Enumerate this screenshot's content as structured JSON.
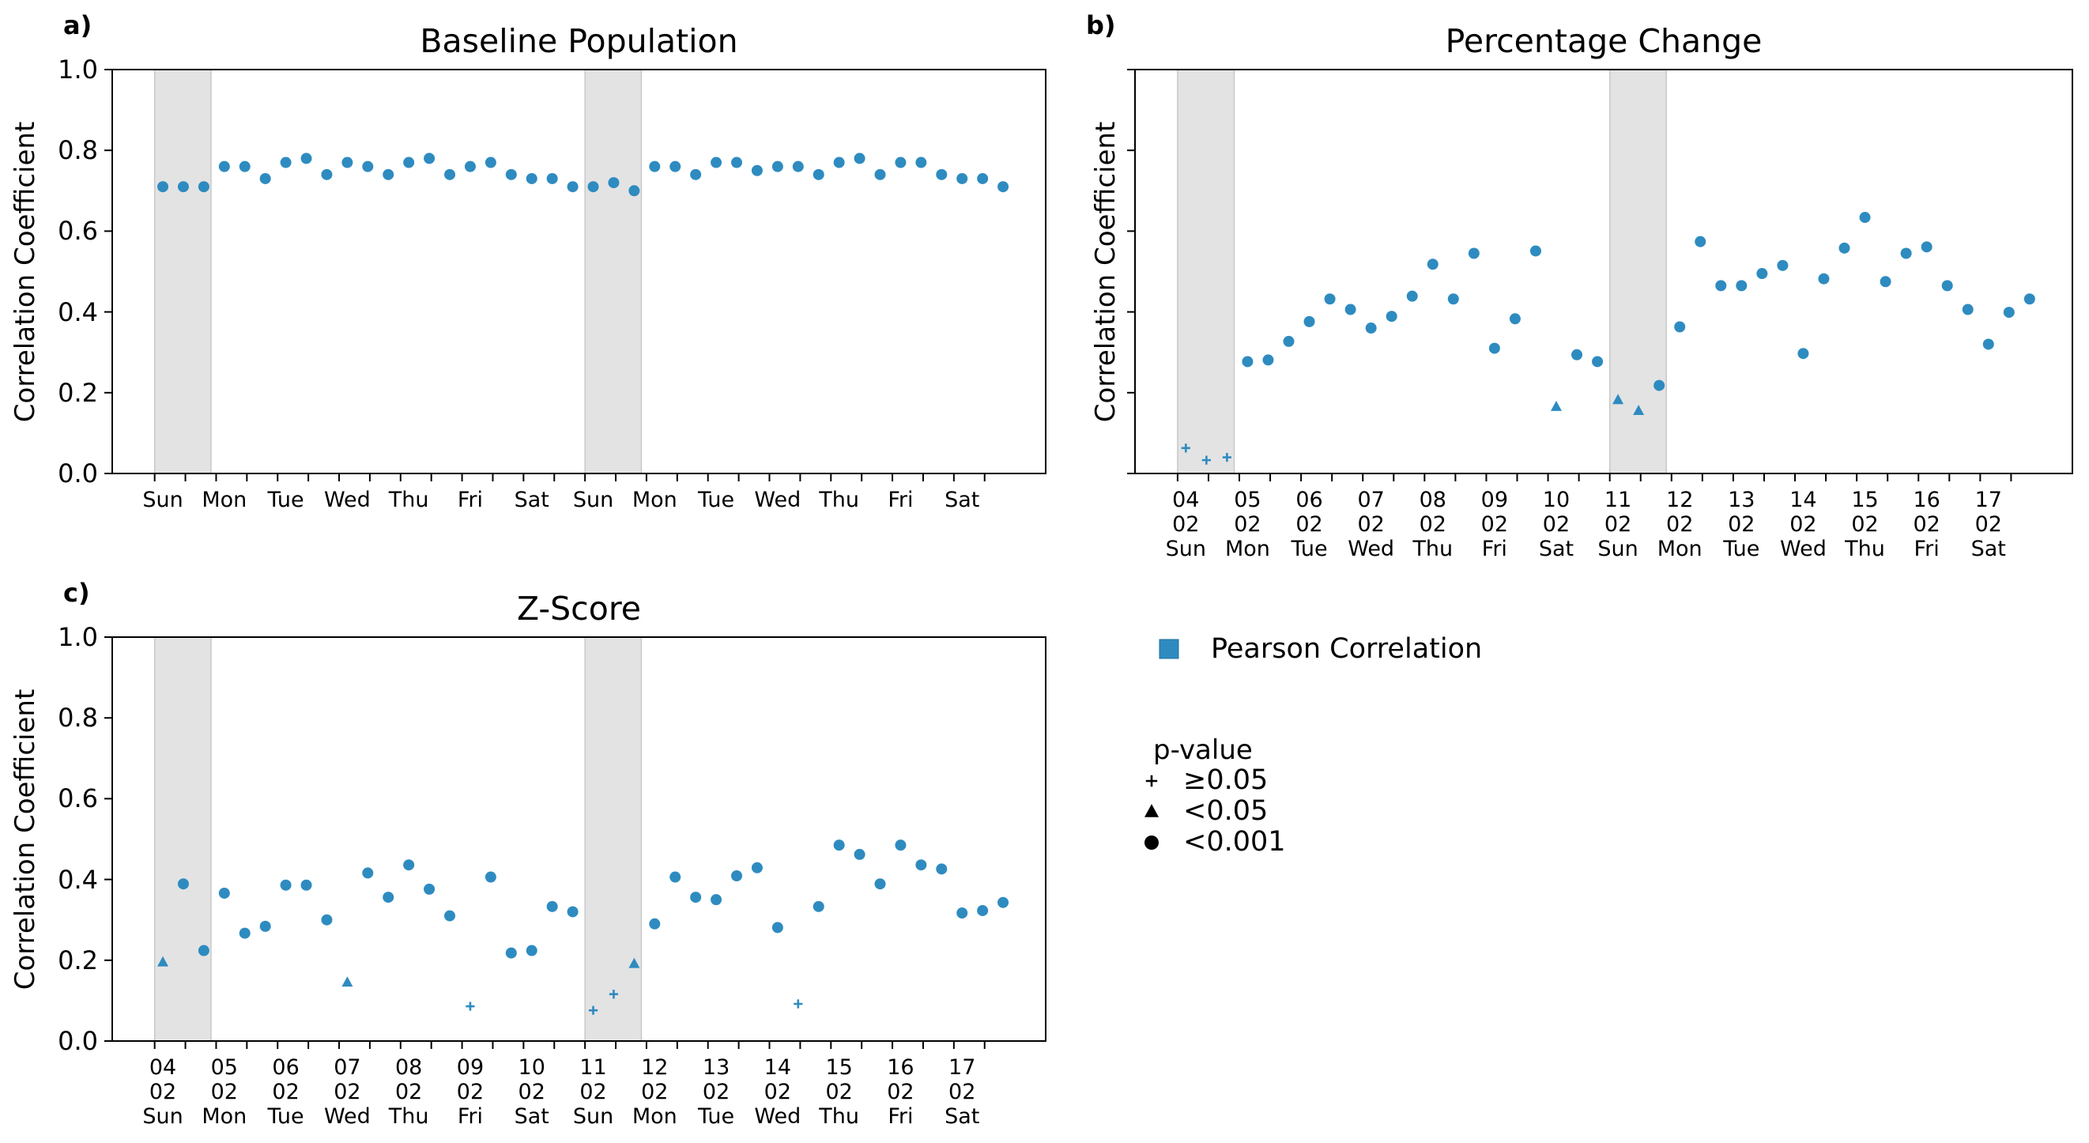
{
  "charts": [
    {
      "type": "scatter",
      "panel_label": "a)",
      "title": "Baseline Population",
      "y_label": "Correlation Coefficient",
      "categories": [
        "Sun",
        null,
        null,
        "Mon",
        null,
        null,
        "Tue",
        null,
        null,
        "Wed",
        null,
        null,
        "Thu",
        null,
        null,
        "Fri",
        null,
        null,
        "Sat",
        null,
        null,
        "Sun",
        null,
        null,
        "Mon",
        null,
        null,
        "Tue",
        null,
        null,
        "Wed",
        null,
        null,
        "Thu",
        null,
        null,
        "Fri",
        null,
        null,
        "Sat",
        null,
        null
      ],
      "shaded_spans": [
        [
          0,
          2
        ],
        [
          21,
          23
        ]
      ],
      "ylim": [
        0,
        1
      ],
      "yticks": [
        {
          "value": 0,
          "label": "0.0"
        },
        0.2,
        0.4,
        0.6,
        0.8,
        {
          "value": 1,
          "label": "1.0"
        }
      ],
      "show_ytick_labels": true,
      "series": [
        {
          "name": "Pearson Correlation",
          "color": "#2e8bc0",
          "values": [
            0.71,
            0.71,
            0.71,
            0.76,
            0.76,
            0.73,
            0.77,
            0.78,
            0.74,
            0.77,
            0.76,
            0.74,
            0.77,
            0.78,
            0.74,
            0.76,
            0.77,
            0.74,
            0.73,
            0.73,
            0.71,
            0.71,
            0.72,
            0.7,
            0.76,
            0.76,
            0.74,
            0.77,
            0.77,
            0.75,
            0.76,
            0.76,
            0.74,
            0.77,
            0.78,
            0.74,
            0.77,
            0.77,
            0.74,
            0.73,
            0.73,
            0.71
          ],
          "markers": [
            "circle",
            "circle",
            "circle",
            "circle",
            "circle",
            "circle",
            "circle",
            "circle",
            "circle",
            "circle",
            "circle",
            "circle",
            "circle",
            "circle",
            "circle",
            "circle",
            "circle",
            "circle",
            "circle",
            "circle",
            "circle",
            "circle",
            "circle",
            "circle",
            "circle",
            "circle",
            "circle",
            "circle",
            "circle",
            "circle",
            "circle",
            "circle",
            "circle",
            "circle",
            "circle",
            "circle",
            "circle",
            "circle",
            "circle",
            "circle",
            "circle",
            "circle"
          ]
        }
      ]
    },
    {
      "type": "scatter",
      "panel_label": "b)",
      "title": "Percentage Change",
      "y_label": "Correlation Coefficient",
      "categories": [
        "04\n02\nSun",
        null,
        null,
        "05\n02\nMon",
        null,
        null,
        "06\n02\nTue",
        null,
        null,
        "07\n02\nWed",
        null,
        null,
        "08\n02\nThu",
        null,
        null,
        "09\n02\nFri",
        null,
        null,
        "10\n02\nSat",
        null,
        null,
        "11\n02\nSun",
        null,
        null,
        "12\n02\nMon",
        null,
        null,
        "13\n02\nTue",
        null,
        null,
        "14\n02\nWed",
        null,
        null,
        "15\n02\nThu",
        null,
        null,
        "16\n02\nFri",
        null,
        null,
        "17\n02\nSat",
        null,
        null
      ],
      "shaded_spans": [
        [
          0,
          2
        ],
        [
          21,
          23
        ]
      ],
      "ylim": [
        0,
        1
      ],
      "yticks": [
        0,
        0.2,
        0.4,
        0.6,
        0.8,
        1
      ],
      "show_ytick_labels": false,
      "series": [
        {
          "name": "Pearson Correlation",
          "color": "#2e8bc0",
          "values": [
            0.063,
            0.033,
            0.04,
            0.277,
            0.281,
            0.327,
            0.376,
            0.432,
            0.406,
            0.36,
            0.389,
            0.439,
            0.518,
            0.432,
            0.545,
            0.31,
            0.383,
            0.551,
            0.165,
            0.294,
            0.277,
            0.182,
            0.155,
            0.218,
            0.363,
            0.574,
            0.465,
            0.465,
            0.495,
            0.515,
            0.297,
            0.482,
            0.558,
            0.634,
            0.475,
            0.545,
            0.561,
            0.465,
            0.406,
            0.32,
            0.399,
            0.432
          ],
          "markers": [
            "plus",
            "plus",
            "plus",
            "circle",
            "circle",
            "circle",
            "circle",
            "circle",
            "circle",
            "circle",
            "circle",
            "circle",
            "circle",
            "circle",
            "circle",
            "circle",
            "circle",
            "circle",
            "triangle",
            "circle",
            "circle",
            "triangle",
            "triangle",
            "circle",
            "circle",
            "circle",
            "circle",
            "circle",
            "circle",
            "circle",
            "circle",
            "circle",
            "circle",
            "circle",
            "circle",
            "circle",
            "circle",
            "circle",
            "circle",
            "circle",
            "circle",
            "circle"
          ]
        }
      ]
    },
    {
      "type": "scatter",
      "panel_label": "c)",
      "title": "Z-Score",
      "y_label": "Correlation Coefficient",
      "categories": [
        "04\n02\nSun",
        null,
        null,
        "05\n02\nMon",
        null,
        null,
        "06\n02\nTue",
        null,
        null,
        "07\n02\nWed",
        null,
        null,
        "08\n02\nThu",
        null,
        null,
        "09\n02\nFri",
        null,
        null,
        "10\n02\nSat",
        null,
        null,
        "11\n02\nSun",
        null,
        null,
        "12\n02\nMon",
        null,
        null,
        "13\n02\nTue",
        null,
        null,
        "14\n02\nWed",
        null,
        null,
        "15\n02\nThu",
        null,
        null,
        "16\n02\nFri",
        null,
        null,
        "17\n02\nSat",
        null,
        null
      ],
      "shaded_spans": [
        [
          0,
          2
        ],
        [
          21,
          23
        ]
      ],
      "ylim": [
        0,
        1
      ],
      "yticks": [
        {
          "value": 0,
          "label": "0.0"
        },
        0.2,
        0.4,
        0.6,
        0.8,
        {
          "value": 1,
          "label": "1.0"
        }
      ],
      "show_ytick_labels": true,
      "series": [
        {
          "name": "Pearson Correlation",
          "color": "#2e8bc0",
          "values": [
            0.195,
            0.389,
            0.224,
            0.366,
            0.267,
            0.284,
            0.386,
            0.386,
            0.3,
            0.145,
            0.416,
            0.356,
            0.436,
            0.376,
            0.31,
            0.086,
            0.406,
            0.218,
            0.224,
            0.333,
            0.32,
            0.076,
            0.116,
            0.191,
            0.29,
            0.406,
            0.356,
            0.35,
            0.409,
            0.429,
            0.281,
            0.092,
            0.333,
            0.485,
            0.462,
            0.389,
            0.485,
            0.436,
            0.426,
            0.317,
            0.323,
            0.343
          ],
          "markers": [
            "triangle",
            "circle",
            "circle",
            "circle",
            "circle",
            "circle",
            "circle",
            "circle",
            "circle",
            "triangle",
            "circle",
            "circle",
            "circle",
            "circle",
            "circle",
            "plus",
            "circle",
            "circle",
            "circle",
            "circle",
            "circle",
            "plus",
            "plus",
            "triangle",
            "circle",
            "circle",
            "circle",
            "circle",
            "circle",
            "circle",
            "circle",
            "plus",
            "circle",
            "circle",
            "circle",
            "circle",
            "circle",
            "circle",
            "circle",
            "circle",
            "circle",
            "circle"
          ]
        }
      ]
    }
  ],
  "legend": {
    "title": "p-value",
    "entries": [
      {
        "marker": "plus",
        "label": "≥0.05"
      },
      {
        "marker": "triangle",
        "label": "<0.05"
      },
      {
        "marker": "circle",
        "label": "<0.001"
      }
    ]
  }
}
